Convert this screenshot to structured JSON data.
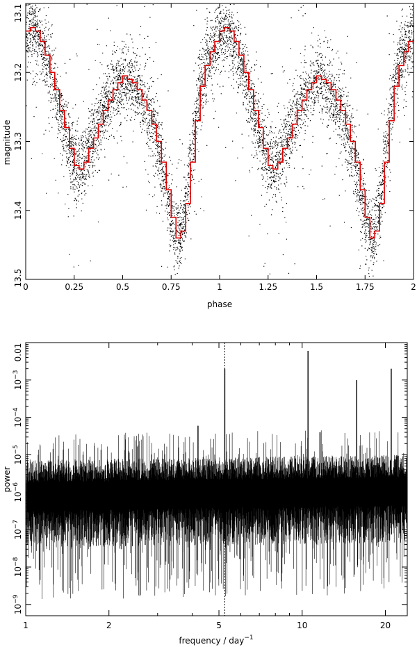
{
  "chart_data": [
    {
      "type": "scatter",
      "xlabel": "phase",
      "ylabel": "magnitude",
      "xlim": [
        0,
        2
      ],
      "ylim": [
        13.5,
        13.1
      ],
      "y_inverted": true,
      "x_ticks": [
        0,
        0.25,
        0.5,
        0.75,
        1,
        1.25,
        1.5,
        1.75,
        2
      ],
      "x_tick_labels": [
        "0",
        "0.25",
        "0.5",
        "0.75",
        "1",
        "1.25",
        "1.5",
        "1.75",
        "2"
      ],
      "y_ticks": [
        13.1,
        13.2,
        13.3,
        13.4,
        13.5
      ],
      "y_tick_labels": [
        "13.1",
        "13.2",
        "13.3",
        "13.4",
        "13.5"
      ],
      "colors": {
        "points": "#000000",
        "binned_curve": "#e00000"
      },
      "binned_curve": {
        "phase": [
          0.0,
          0.025,
          0.05,
          0.075,
          0.1,
          0.125,
          0.15,
          0.175,
          0.2,
          0.225,
          0.25,
          0.275,
          0.3,
          0.325,
          0.35,
          0.375,
          0.4,
          0.425,
          0.45,
          0.475,
          0.5,
          0.525,
          0.55,
          0.575,
          0.6,
          0.625,
          0.65,
          0.675,
          0.7,
          0.725,
          0.75,
          0.775,
          0.8,
          0.825,
          0.85,
          0.875,
          0.9,
          0.925,
          0.95,
          0.975,
          1.0
        ],
        "magnitude": [
          13.14,
          13.135,
          13.14,
          13.155,
          13.175,
          13.2,
          13.225,
          13.255,
          13.28,
          13.31,
          13.335,
          13.34,
          13.33,
          13.31,
          13.295,
          13.275,
          13.255,
          13.24,
          13.225,
          13.215,
          13.205,
          13.21,
          13.215,
          13.225,
          13.24,
          13.255,
          13.275,
          13.3,
          13.33,
          13.37,
          13.41,
          13.44,
          13.43,
          13.39,
          13.33,
          13.27,
          13.22,
          13.19,
          13.17,
          13.155,
          13.14
        ]
      },
      "scatter_points_approx": 14000,
      "scatter_scatter_mag": 0.025
    },
    {
      "type": "line",
      "xlabel": "frequency / day",
      "xlabel_superscript": "−1",
      "ylabel": "power",
      "x_scale": "log",
      "y_scale": "log",
      "xlim": [
        1,
        24
      ],
      "ylim": [
        5e-10,
        0.01
      ],
      "x_ticks": [
        1,
        2,
        5,
        10,
        20
      ],
      "x_tick_labels": [
        "1",
        "2",
        "5",
        "10",
        "20"
      ],
      "y_ticks": [
        {
          "base": "0.01",
          "sup": ""
        },
        {
          "base": "10",
          "sup": "−3"
        },
        {
          "base": "10",
          "sup": "−4"
        },
        {
          "base": "10",
          "sup": "−5"
        },
        {
          "base": "10",
          "sup": "−6"
        },
        {
          "base": "10",
          "sup": "−7"
        },
        {
          "base": "10",
          "sup": "−8"
        },
        {
          "base": "10",
          "sup": "−9"
        }
      ],
      "y_tick_values": [
        0.01,
        0.001,
        0.0001,
        1e-05,
        1e-06,
        1e-07,
        1e-08,
        1e-09
      ],
      "reference_line_x": 5.25,
      "peaks": [
        {
          "frequency": 4.2,
          "power": 6e-05
        },
        {
          "frequency": 5.25,
          "power": 0.002
        },
        {
          "frequency": 10.5,
          "power": 0.006
        },
        {
          "frequency": 11.6,
          "power": 4e-05
        },
        {
          "frequency": 15.75,
          "power": 0.001
        },
        {
          "frequency": 21.0,
          "power": 0.002
        }
      ],
      "noise_floor_median": 8e-07
    }
  ]
}
